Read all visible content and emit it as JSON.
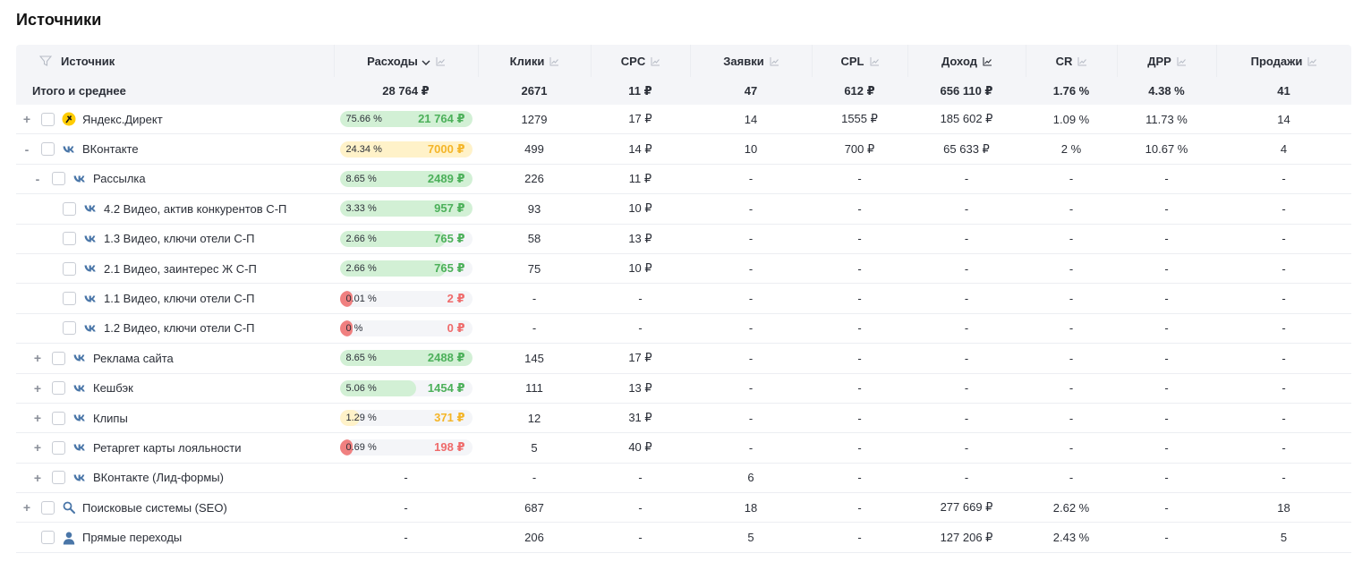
{
  "page_title": "Источники",
  "colors": {
    "green_fill": "#d2f0d5",
    "green_text": "#4cb05a",
    "yellow_fill": "#fff2c9",
    "yellow_text": "#f4b528",
    "red_fill": "#f08080",
    "red_text": "#ef6b6b",
    "vk_blue": "#4a76a8"
  },
  "header": {
    "source": "Источник",
    "spend": "Расходы",
    "clicks": "Клики",
    "cpc": "CPC",
    "leads": "Заявки",
    "cpl": "CPL",
    "revenue": "Доход",
    "cr": "CR",
    "drr": "ДРР",
    "sales": "Продажи"
  },
  "totals": {
    "label": "Итого и среднее",
    "spend": "28 764 ₽",
    "clicks": "2671",
    "cpc": "11 ₽",
    "leads": "47",
    "cpl": "612 ₽",
    "revenue": "656 110 ₽",
    "cr": "1.76 %",
    "drr": "4.38 %",
    "sales": "41"
  },
  "rows": [
    {
      "toggle": "+",
      "level": 0,
      "icon": "yandex-direct-icon",
      "name": "Яндекс.Директ",
      "spend_pct": "75.66 %",
      "spend_val": "21 764 ₽",
      "spend_fraction": 1.0,
      "tone": "green",
      "clicks": "1279",
      "cpc": "17 ₽",
      "leads": "14",
      "cpl": "1555 ₽",
      "revenue": "185 602 ₽",
      "cr": "1.09 %",
      "drr": "11.73 %",
      "sales": "14"
    },
    {
      "toggle": "-",
      "level": 0,
      "icon": "vk-icon",
      "name": "ВКонтакте",
      "spend_pct": "24.34 %",
      "spend_val": "7000 ₽",
      "spend_fraction": 1.0,
      "tone": "yellow",
      "clicks": "499",
      "cpc": "14 ₽",
      "leads": "10",
      "cpl": "700 ₽",
      "revenue": "65 633 ₽",
      "cr": "2 %",
      "drr": "10.67 %",
      "sales": "4"
    },
    {
      "toggle": "-",
      "level": 1,
      "icon": "vk-icon",
      "name": "Рассылка",
      "spend_pct": "8.65 %",
      "spend_val": "2489 ₽",
      "spend_fraction": 1.0,
      "tone": "green",
      "clicks": "226",
      "cpc": "11 ₽",
      "leads": "-",
      "cpl": "-",
      "revenue": "-",
      "cr": "-",
      "drr": "-",
      "sales": "-"
    },
    {
      "toggle": "",
      "level": 2,
      "icon": "vk-icon",
      "name": "4.2 Видео, актив конкурентов С-П",
      "spend_pct": "3.33 %",
      "spend_val": "957 ₽",
      "spend_fraction": 1.0,
      "tone": "green",
      "clicks": "93",
      "cpc": "10 ₽",
      "leads": "-",
      "cpl": "-",
      "revenue": "-",
      "cr": "-",
      "drr": "-",
      "sales": "-"
    },
    {
      "toggle": "",
      "level": 2,
      "icon": "vk-icon",
      "name": "1.3 Видео, ключи отели С-П",
      "spend_pct": "2.66 %",
      "spend_val": "765 ₽",
      "spend_fraction": 0.8,
      "tone": "green",
      "clicks": "58",
      "cpc": "13 ₽",
      "leads": "-",
      "cpl": "-",
      "revenue": "-",
      "cr": "-",
      "drr": "-",
      "sales": "-"
    },
    {
      "toggle": "",
      "level": 2,
      "icon": "vk-icon",
      "name": "2.1 Видео, заинтерес Ж С-П",
      "spend_pct": "2.66 %",
      "spend_val": "765 ₽",
      "spend_fraction": 0.8,
      "tone": "green",
      "clicks": "75",
      "cpc": "10 ₽",
      "leads": "-",
      "cpl": "-",
      "revenue": "-",
      "cr": "-",
      "drr": "-",
      "sales": "-"
    },
    {
      "toggle": "",
      "level": 2,
      "icon": "vk-icon",
      "name": "1.1 Видео, ключи отели С-П",
      "spend_pct": "0.01 %",
      "spend_val": "2 ₽",
      "spend_fraction": 0.1,
      "tone": "red",
      "clicks": "-",
      "cpc": "-",
      "leads": "-",
      "cpl": "-",
      "revenue": "-",
      "cr": "-",
      "drr": "-",
      "sales": "-"
    },
    {
      "toggle": "",
      "level": 2,
      "icon": "vk-icon",
      "name": "1.2 Видео, ключи отели С-П",
      "spend_pct": "0 %",
      "spend_val": "0 ₽",
      "spend_fraction": 0.1,
      "tone": "red",
      "clicks": "-",
      "cpc": "-",
      "leads": "-",
      "cpl": "-",
      "revenue": "-",
      "cr": "-",
      "drr": "-",
      "sales": "-"
    },
    {
      "toggle": "+",
      "level": 1,
      "icon": "vk-icon",
      "name": "Реклама сайта",
      "spend_pct": "8.65 %",
      "spend_val": "2488 ₽",
      "spend_fraction": 1.0,
      "tone": "green",
      "clicks": "145",
      "cpc": "17 ₽",
      "leads": "-",
      "cpl": "-",
      "revenue": "-",
      "cr": "-",
      "drr": "-",
      "sales": "-"
    },
    {
      "toggle": "+",
      "level": 1,
      "icon": "vk-icon",
      "name": "Кешбэк",
      "spend_pct": "5.06 %",
      "spend_val": "1454 ₽",
      "spend_fraction": 0.58,
      "tone": "green",
      "clicks": "111",
      "cpc": "13 ₽",
      "leads": "-",
      "cpl": "-",
      "revenue": "-",
      "cr": "-",
      "drr": "-",
      "sales": "-"
    },
    {
      "toggle": "+",
      "level": 1,
      "icon": "vk-icon",
      "name": "Клипы",
      "spend_pct": "1.29 %",
      "spend_val": "371 ₽",
      "spend_fraction": 0.15,
      "tone": "yellow",
      "clicks": "12",
      "cpc": "31 ₽",
      "leads": "-",
      "cpl": "-",
      "revenue": "-",
      "cr": "-",
      "drr": "-",
      "sales": "-"
    },
    {
      "toggle": "+",
      "level": 1,
      "icon": "vk-icon",
      "name": "Ретаргет карты лояльности",
      "spend_pct": "0.69 %",
      "spend_val": "198 ₽",
      "spend_fraction": 0.1,
      "tone": "red",
      "clicks": "5",
      "cpc": "40 ₽",
      "leads": "-",
      "cpl": "-",
      "revenue": "-",
      "cr": "-",
      "drr": "-",
      "sales": "-"
    },
    {
      "toggle": "+",
      "level": 1,
      "icon": "vk-icon",
      "name": "ВКонтакте (Лид-формы)",
      "spend_plain": "-",
      "clicks": "-",
      "cpc": "-",
      "leads": "6",
      "cpl": "-",
      "revenue": "-",
      "cr": "-",
      "drr": "-",
      "sales": "-"
    },
    {
      "toggle": "+",
      "level": 0,
      "icon": "search-icon",
      "name": "Поисковые системы (SEO)",
      "spend_plain": "-",
      "clicks": "687",
      "cpc": "-",
      "leads": "18",
      "cpl": "-",
      "revenue": "277 669 ₽",
      "cr": "2.62 %",
      "drr": "-",
      "sales": "18"
    },
    {
      "toggle": "",
      "level": 0,
      "icon": "person-icon",
      "name": "Прямые переходы",
      "spend_plain": "-",
      "clicks": "206",
      "cpc": "-",
      "leads": "5",
      "cpl": "-",
      "revenue": "127 206 ₽",
      "cr": "2.43 %",
      "drr": "-",
      "sales": "5"
    }
  ]
}
